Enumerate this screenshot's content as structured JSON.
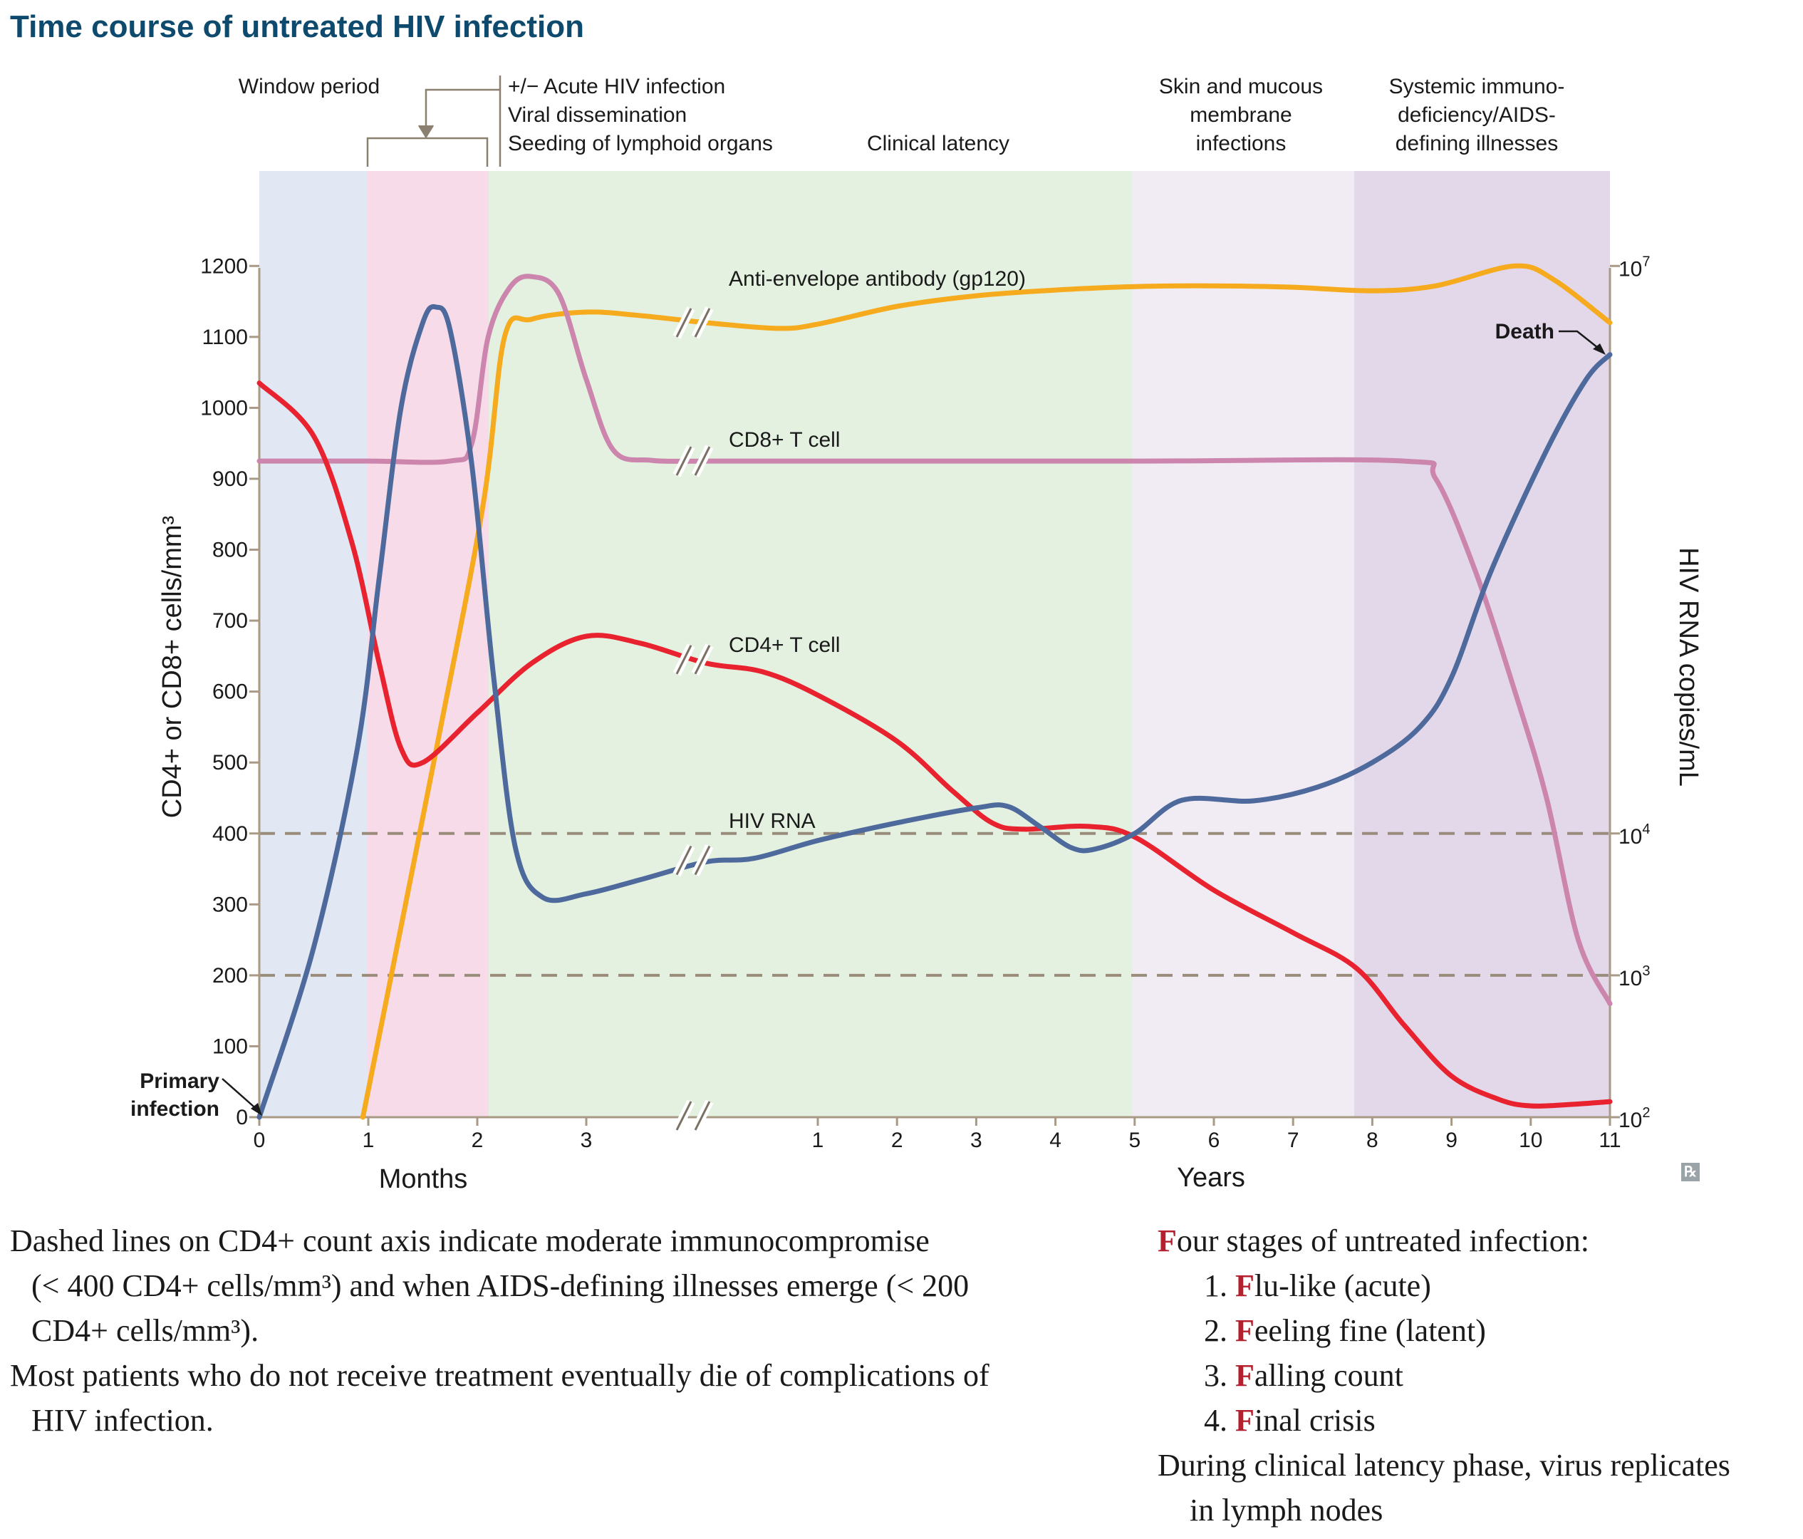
{
  "title": "Time course of untreated HIV infection",
  "stages": {
    "window": "Window period",
    "acute": [
      "+/− Acute HIV infection",
      "Viral dissemination",
      "Seeding of lymphoid organs"
    ],
    "latency": "Clinical latency",
    "skin": [
      "Skin and mucous",
      "membrane",
      "infections"
    ],
    "aids": [
      "Systemic immuno-",
      "deficiency/AIDS-",
      "defining illnesses"
    ]
  },
  "colors": {
    "window_band": "#e1e7f3",
    "acute_band": "#f8dbe8",
    "latency_band": "#e4f1e0",
    "skin_band": "#f1ecf4",
    "aids_band": "#e3d7ea",
    "cd4": "#e8222e",
    "cd8": "#cc85ad",
    "hiv_rna": "#4e6a9c",
    "antibody": "#f5ab1d",
    "dashed": "#9a8c7a",
    "axis": "#a99a86",
    "title": "#0e4a6e"
  },
  "chart_data": {
    "type": "line",
    "title": "Time course of untreated HIV infection",
    "ylabel": "CD4+ or CD8+ cells/mm³",
    "y2label": "HIV RNA copies/mL",
    "ylim": [
      0,
      1200
    ],
    "yticks": [
      0,
      100,
      200,
      300,
      400,
      500,
      600,
      700,
      800,
      900,
      1000,
      1100,
      1200
    ],
    "y2ticks": [
      {
        "base": "10",
        "exp": "2",
        "at": 0
      },
      {
        "base": "10",
        "exp": "3",
        "at": 200
      },
      {
        "base": "10",
        "exp": "4",
        "at": 400
      },
      {
        "base": "10",
        "exp": "7",
        "at": 1200
      }
    ],
    "x_segments": [
      {
        "label": "Months",
        "ticks": [
          "0",
          "1",
          "2",
          "3"
        ]
      },
      {
        "label": "Years",
        "ticks": [
          "1",
          "2",
          "3",
          "4",
          "5",
          "6",
          "7",
          "8",
          "9",
          "10",
          "11"
        ]
      }
    ],
    "dashed_lines": [
      400,
      200
    ],
    "grid": false,
    "series": [
      {
        "name": "Anti-envelope antibody (gp120)",
        "key": "antibody",
        "points": [
          {
            "seg": 0,
            "x": 0.95,
            "y": 0
          },
          {
            "seg": 0,
            "x": 1.6,
            "y": 500
          },
          {
            "seg": 0,
            "x": 2.05,
            "y": 860
          },
          {
            "seg": 0,
            "x": 2.25,
            "y": 1100
          },
          {
            "seg": 0,
            "x": 2.5,
            "y": 1125
          },
          {
            "seg": 0,
            "x": 3.0,
            "y": 1135
          },
          {
            "seg": 0,
            "x": 3.5,
            "y": 1130
          },
          {
            "seg": 0,
            "x": 4.1,
            "y": 1120
          },
          {
            "seg": 1,
            "x": 0.5,
            "y": 1112
          },
          {
            "seg": 1,
            "x": 1.0,
            "y": 1118
          },
          {
            "seg": 1,
            "x": 2.0,
            "y": 1143
          },
          {
            "seg": 1,
            "x": 3.0,
            "y": 1158
          },
          {
            "seg": 1,
            "x": 4.0,
            "y": 1166
          },
          {
            "seg": 1,
            "x": 5.0,
            "y": 1171
          },
          {
            "seg": 1,
            "x": 6.0,
            "y": 1172
          },
          {
            "seg": 1,
            "x": 7.0,
            "y": 1170
          },
          {
            "seg": 1,
            "x": 8.0,
            "y": 1165
          },
          {
            "seg": 1,
            "x": 8.8,
            "y": 1172
          },
          {
            "seg": 1,
            "x": 9.8,
            "y": 1200
          },
          {
            "seg": 1,
            "x": 10.3,
            "y": 1180
          },
          {
            "seg": 1,
            "x": 11.0,
            "y": 1120
          }
        ]
      },
      {
        "name": "CD8+ T cell",
        "key": "cd8",
        "points": [
          {
            "seg": 0,
            "x": 0.0,
            "y": 925
          },
          {
            "seg": 0,
            "x": 1.0,
            "y": 925
          },
          {
            "seg": 0,
            "x": 1.75,
            "y": 925
          },
          {
            "seg": 0,
            "x": 1.95,
            "y": 950
          },
          {
            "seg": 0,
            "x": 2.1,
            "y": 1100
          },
          {
            "seg": 0,
            "x": 2.3,
            "y": 1170
          },
          {
            "seg": 0,
            "x": 2.5,
            "y": 1185
          },
          {
            "seg": 0,
            "x": 2.75,
            "y": 1160
          },
          {
            "seg": 0,
            "x": 3.0,
            "y": 1040
          },
          {
            "seg": 0,
            "x": 3.25,
            "y": 940
          },
          {
            "seg": 0,
            "x": 3.6,
            "y": 926
          },
          {
            "seg": 0,
            "x": 4.1,
            "y": 925
          },
          {
            "seg": 1,
            "x": 0.0,
            "y": 925
          },
          {
            "seg": 1,
            "x": 5.0,
            "y": 925
          },
          {
            "seg": 1,
            "x": 8.4,
            "y": 925
          },
          {
            "seg": 1,
            "x": 8.8,
            "y": 900
          },
          {
            "seg": 1,
            "x": 9.3,
            "y": 770
          },
          {
            "seg": 1,
            "x": 9.8,
            "y": 600
          },
          {
            "seg": 1,
            "x": 10.2,
            "y": 450
          },
          {
            "seg": 1,
            "x": 10.6,
            "y": 250
          },
          {
            "seg": 1,
            "x": 11.0,
            "y": 160
          }
        ]
      },
      {
        "name": "CD4+ T cell",
        "key": "cd4",
        "points": [
          {
            "seg": 0,
            "x": 0.0,
            "y": 1035
          },
          {
            "seg": 0,
            "x": 0.5,
            "y": 960
          },
          {
            "seg": 0,
            "x": 0.85,
            "y": 810
          },
          {
            "seg": 0,
            "x": 1.1,
            "y": 640
          },
          {
            "seg": 0,
            "x": 1.3,
            "y": 520
          },
          {
            "seg": 0,
            "x": 1.5,
            "y": 500
          },
          {
            "seg": 0,
            "x": 2.0,
            "y": 570
          },
          {
            "seg": 0,
            "x": 2.5,
            "y": 640
          },
          {
            "seg": 0,
            "x": 3.0,
            "y": 678
          },
          {
            "seg": 0,
            "x": 3.5,
            "y": 668
          },
          {
            "seg": 0,
            "x": 4.1,
            "y": 640
          },
          {
            "seg": 1,
            "x": 0.3,
            "y": 628
          },
          {
            "seg": 1,
            "x": 1.0,
            "y": 595
          },
          {
            "seg": 1,
            "x": 2.0,
            "y": 530
          },
          {
            "seg": 1,
            "x": 2.7,
            "y": 460
          },
          {
            "seg": 1,
            "x": 3.2,
            "y": 415
          },
          {
            "seg": 1,
            "x": 3.6,
            "y": 406
          },
          {
            "seg": 1,
            "x": 4.4,
            "y": 410
          },
          {
            "seg": 1,
            "x": 5.0,
            "y": 395
          },
          {
            "seg": 1,
            "x": 6.0,
            "y": 320
          },
          {
            "seg": 1,
            "x": 7.0,
            "y": 260
          },
          {
            "seg": 1,
            "x": 7.8,
            "y": 210
          },
          {
            "seg": 1,
            "x": 8.4,
            "y": 130
          },
          {
            "seg": 1,
            "x": 9.0,
            "y": 58
          },
          {
            "seg": 1,
            "x": 9.6,
            "y": 25
          },
          {
            "seg": 1,
            "x": 10.0,
            "y": 16
          },
          {
            "seg": 1,
            "x": 10.5,
            "y": 18
          },
          {
            "seg": 1,
            "x": 11.0,
            "y": 22
          }
        ]
      },
      {
        "name": "HIV RNA",
        "key": "hiv_rna",
        "points": [
          {
            "seg": 0,
            "x": 0.0,
            "y": 0
          },
          {
            "seg": 0,
            "x": 0.5,
            "y": 240
          },
          {
            "seg": 0,
            "x": 0.9,
            "y": 520
          },
          {
            "seg": 0,
            "x": 1.1,
            "y": 760
          },
          {
            "seg": 0,
            "x": 1.3,
            "y": 1000
          },
          {
            "seg": 0,
            "x": 1.5,
            "y": 1120
          },
          {
            "seg": 0,
            "x": 1.62,
            "y": 1142
          },
          {
            "seg": 0,
            "x": 1.75,
            "y": 1110
          },
          {
            "seg": 0,
            "x": 1.95,
            "y": 920
          },
          {
            "seg": 0,
            "x": 2.15,
            "y": 620
          },
          {
            "seg": 0,
            "x": 2.35,
            "y": 380
          },
          {
            "seg": 0,
            "x": 2.6,
            "y": 310
          },
          {
            "seg": 0,
            "x": 3.0,
            "y": 315
          },
          {
            "seg": 0,
            "x": 3.5,
            "y": 335
          },
          {
            "seg": 0,
            "x": 4.1,
            "y": 360
          },
          {
            "seg": 1,
            "x": 0.2,
            "y": 365
          },
          {
            "seg": 1,
            "x": 1.0,
            "y": 390
          },
          {
            "seg": 1,
            "x": 2.0,
            "y": 415
          },
          {
            "seg": 1,
            "x": 3.0,
            "y": 436
          },
          {
            "seg": 1,
            "x": 3.4,
            "y": 438
          },
          {
            "seg": 1,
            "x": 3.8,
            "y": 410
          },
          {
            "seg": 1,
            "x": 4.2,
            "y": 380
          },
          {
            "seg": 1,
            "x": 4.5,
            "y": 378
          },
          {
            "seg": 1,
            "x": 5.0,
            "y": 400
          },
          {
            "seg": 1,
            "x": 5.6,
            "y": 447
          },
          {
            "seg": 1,
            "x": 6.5,
            "y": 446
          },
          {
            "seg": 1,
            "x": 7.3,
            "y": 465
          },
          {
            "seg": 1,
            "x": 8.0,
            "y": 500
          },
          {
            "seg": 1,
            "x": 8.6,
            "y": 550
          },
          {
            "seg": 1,
            "x": 9.0,
            "y": 620
          },
          {
            "seg": 1,
            "x": 9.5,
            "y": 770
          },
          {
            "seg": 1,
            "x": 10.2,
            "y": 940
          },
          {
            "seg": 1,
            "x": 10.7,
            "y": 1040
          },
          {
            "seg": 1,
            "x": 11.0,
            "y": 1075
          }
        ]
      }
    ],
    "annotations": {
      "primary_infection": [
        "Primary",
        "infection"
      ],
      "death": "Death"
    }
  },
  "captions": {
    "left": [
      {
        "text": "Dashed lines on CD4+ count axis indicate moderate immunocompromise",
        "cont": false
      },
      {
        "text": "(< 400 CD4+ cells/mm³) and when AIDS-defining illnesses emerge (< 200",
        "cont": true
      },
      {
        "text": "CD4+ cells/mm³).",
        "cont": true
      },
      {
        "text": "Most patients who do not receive treatment eventually die of complications of",
        "cont": false
      },
      {
        "text": "HIV infection.",
        "cont": true
      }
    ],
    "right": {
      "intro_first": "F",
      "intro_rest": "our stages of untreated infection:",
      "items": [
        {
          "num": "1.",
          "first": "F",
          "rest": "lu-like (acute)"
        },
        {
          "num": "2.",
          "first": "F",
          "rest": "eeling fine (latent)"
        },
        {
          "num": "3.",
          "first": "F",
          "rest": "alling count"
        },
        {
          "num": "4.",
          "first": "F",
          "rest": "inal crisis"
        }
      ],
      "latency_line1": "During clinical latency phase, virus replicates",
      "latency_line2": "in lymph nodes"
    }
  },
  "badge": "℞"
}
